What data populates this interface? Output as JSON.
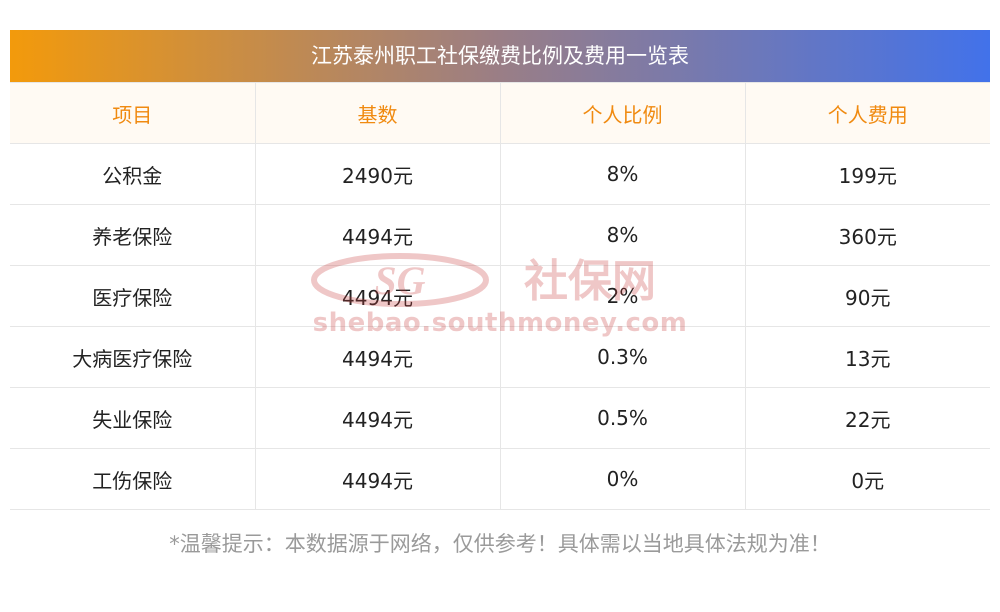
{
  "table": {
    "title": "江苏泰州职工社保缴费比例及费用一览表",
    "headers": [
      "项目",
      "基数",
      "个人比例",
      "个人费用"
    ],
    "rows": [
      [
        "公积金",
        "2490元",
        "8%",
        "199元"
      ],
      [
        "养老保险",
        "4494元",
        "8%",
        "360元"
      ],
      [
        "医疗保险",
        "4494元",
        "2%",
        "90元"
      ],
      [
        "大病医疗保险",
        "4494元",
        "0.3%",
        "13元"
      ],
      [
        "失业保险",
        "4494元",
        "0.5%",
        "22元"
      ],
      [
        "工伤保险",
        "4494元",
        "0%",
        "0元"
      ]
    ]
  },
  "notice": "*温馨提示：本数据源于网络，仅供参考！具体需以当地具体法规为准！",
  "watermark": {
    "brand": "社保网",
    "url": "shebao.southmoney.com"
  },
  "colors": {
    "title_gradient_start": "#f39a0b",
    "title_gradient_end": "#4272ea",
    "header_text": "#f08a10",
    "watermark": "#c7393a"
  }
}
